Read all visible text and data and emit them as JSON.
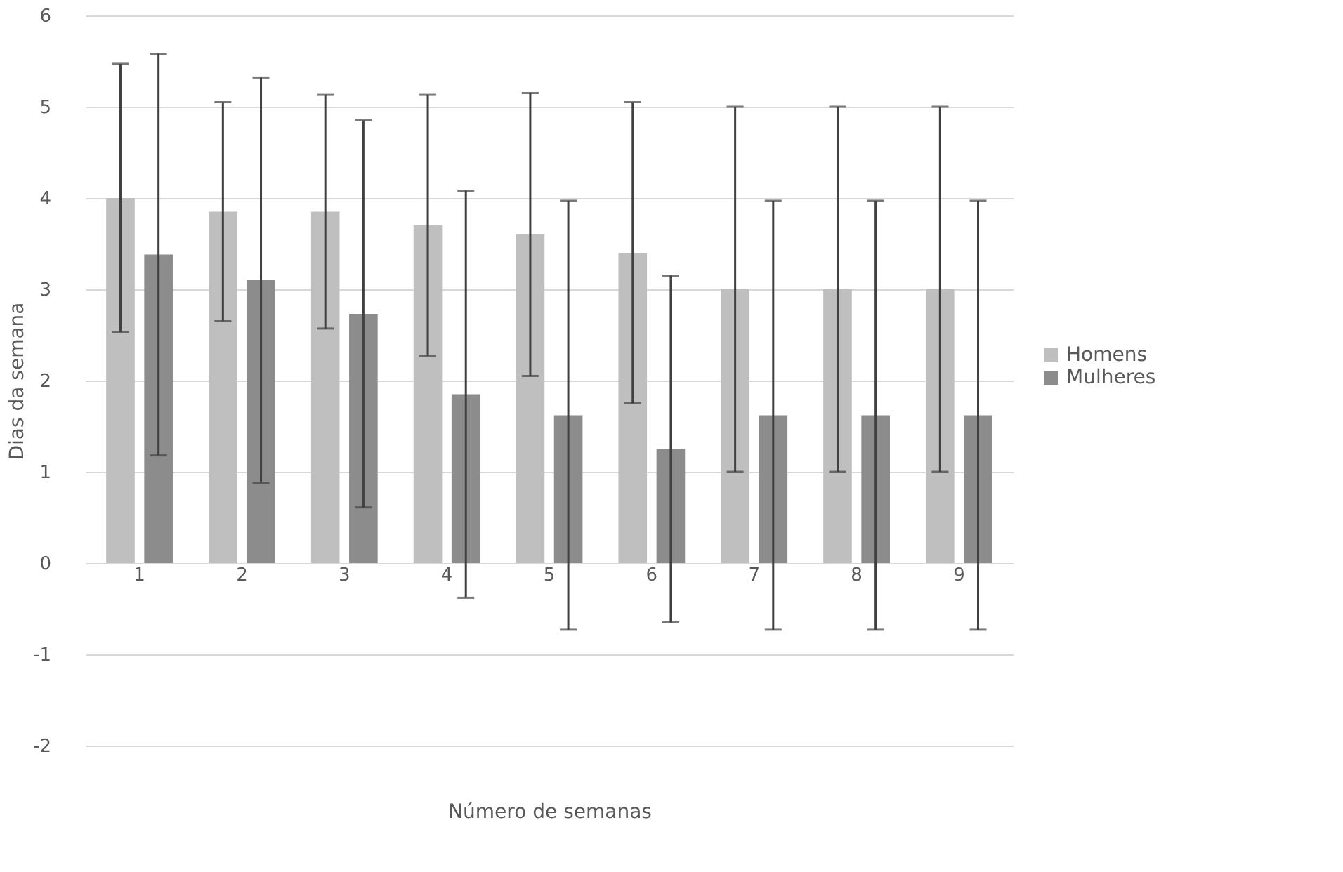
{
  "chart_data": {
    "type": "bar",
    "xlabel": "Número de semanas",
    "ylabel": "Dias da semana",
    "categories": [
      "1",
      "2",
      "3",
      "4",
      "5",
      "6",
      "7",
      "8",
      "9"
    ],
    "series": [
      {
        "name": "Homens",
        "color": "#bfbfbf",
        "values": [
          4.0,
          3.85,
          3.85,
          3.7,
          3.6,
          3.4,
          3.0,
          3.0,
          3.0
        ],
        "errors": [
          1.47,
          1.2,
          1.28,
          1.43,
          1.55,
          1.65,
          2.0,
          2.0,
          2.0
        ]
      },
      {
        "name": "Mulheres",
        "color": "#8c8c8c",
        "values": [
          3.38,
          3.1,
          2.73,
          1.85,
          1.62,
          1.25,
          1.62,
          1.62,
          1.62
        ],
        "errors": [
          2.2,
          2.22,
          2.12,
          2.23,
          2.35,
          1.9,
          2.35,
          2.35,
          2.35
        ]
      }
    ],
    "ylim": [
      -2,
      6
    ],
    "yticks": [
      -2,
      -1,
      0,
      1,
      2,
      3,
      4,
      5,
      6
    ],
    "grid": "y",
    "legend": "right"
  }
}
